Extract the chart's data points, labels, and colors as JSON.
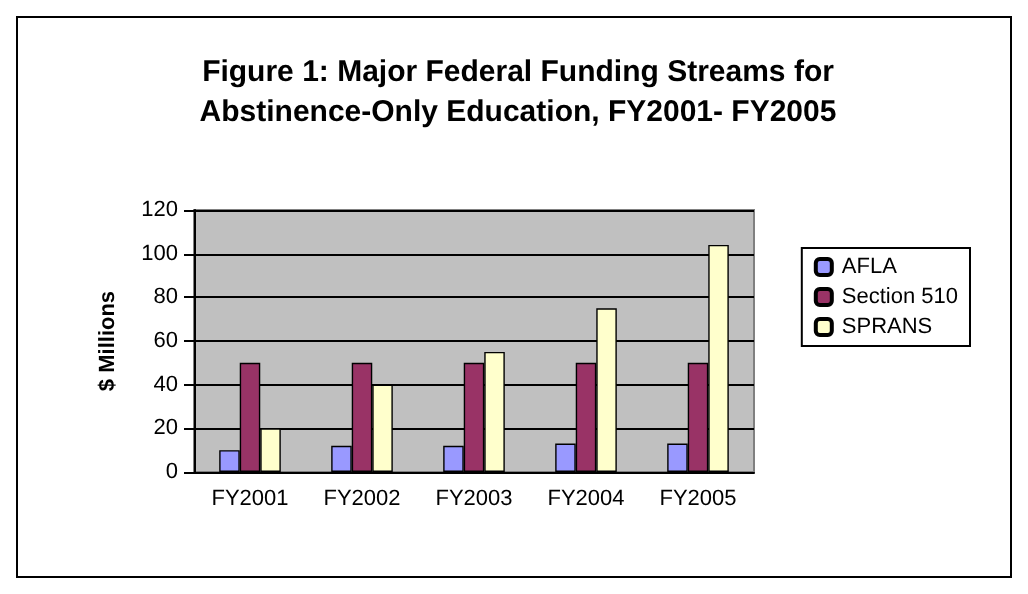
{
  "chart_data": {
    "type": "bar",
    "title": "Figure 1: Major Federal Funding Streams for\nAbstinence-Only Education, FY2001- FY2005",
    "ylabel": "$ Millions",
    "categories": [
      "FY2001",
      "FY2002",
      "FY2003",
      "FY2004",
      "FY2005"
    ],
    "series": [
      {
        "name": "AFLA",
        "color": "#9999ff",
        "values": [
          10,
          12,
          12,
          13,
          13
        ]
      },
      {
        "name": "Section 510",
        "color": "#993366",
        "values": [
          50,
          50,
          50,
          50,
          50
        ]
      },
      {
        "name": "SPRANS",
        "color": "#ffffcc",
        "values": [
          20,
          40,
          55,
          75,
          104
        ]
      }
    ],
    "ylim": [
      0,
      120
    ],
    "yticks": [
      0,
      20,
      40,
      60,
      80,
      100,
      120
    ],
    "grid": "y",
    "legend": "right"
  }
}
